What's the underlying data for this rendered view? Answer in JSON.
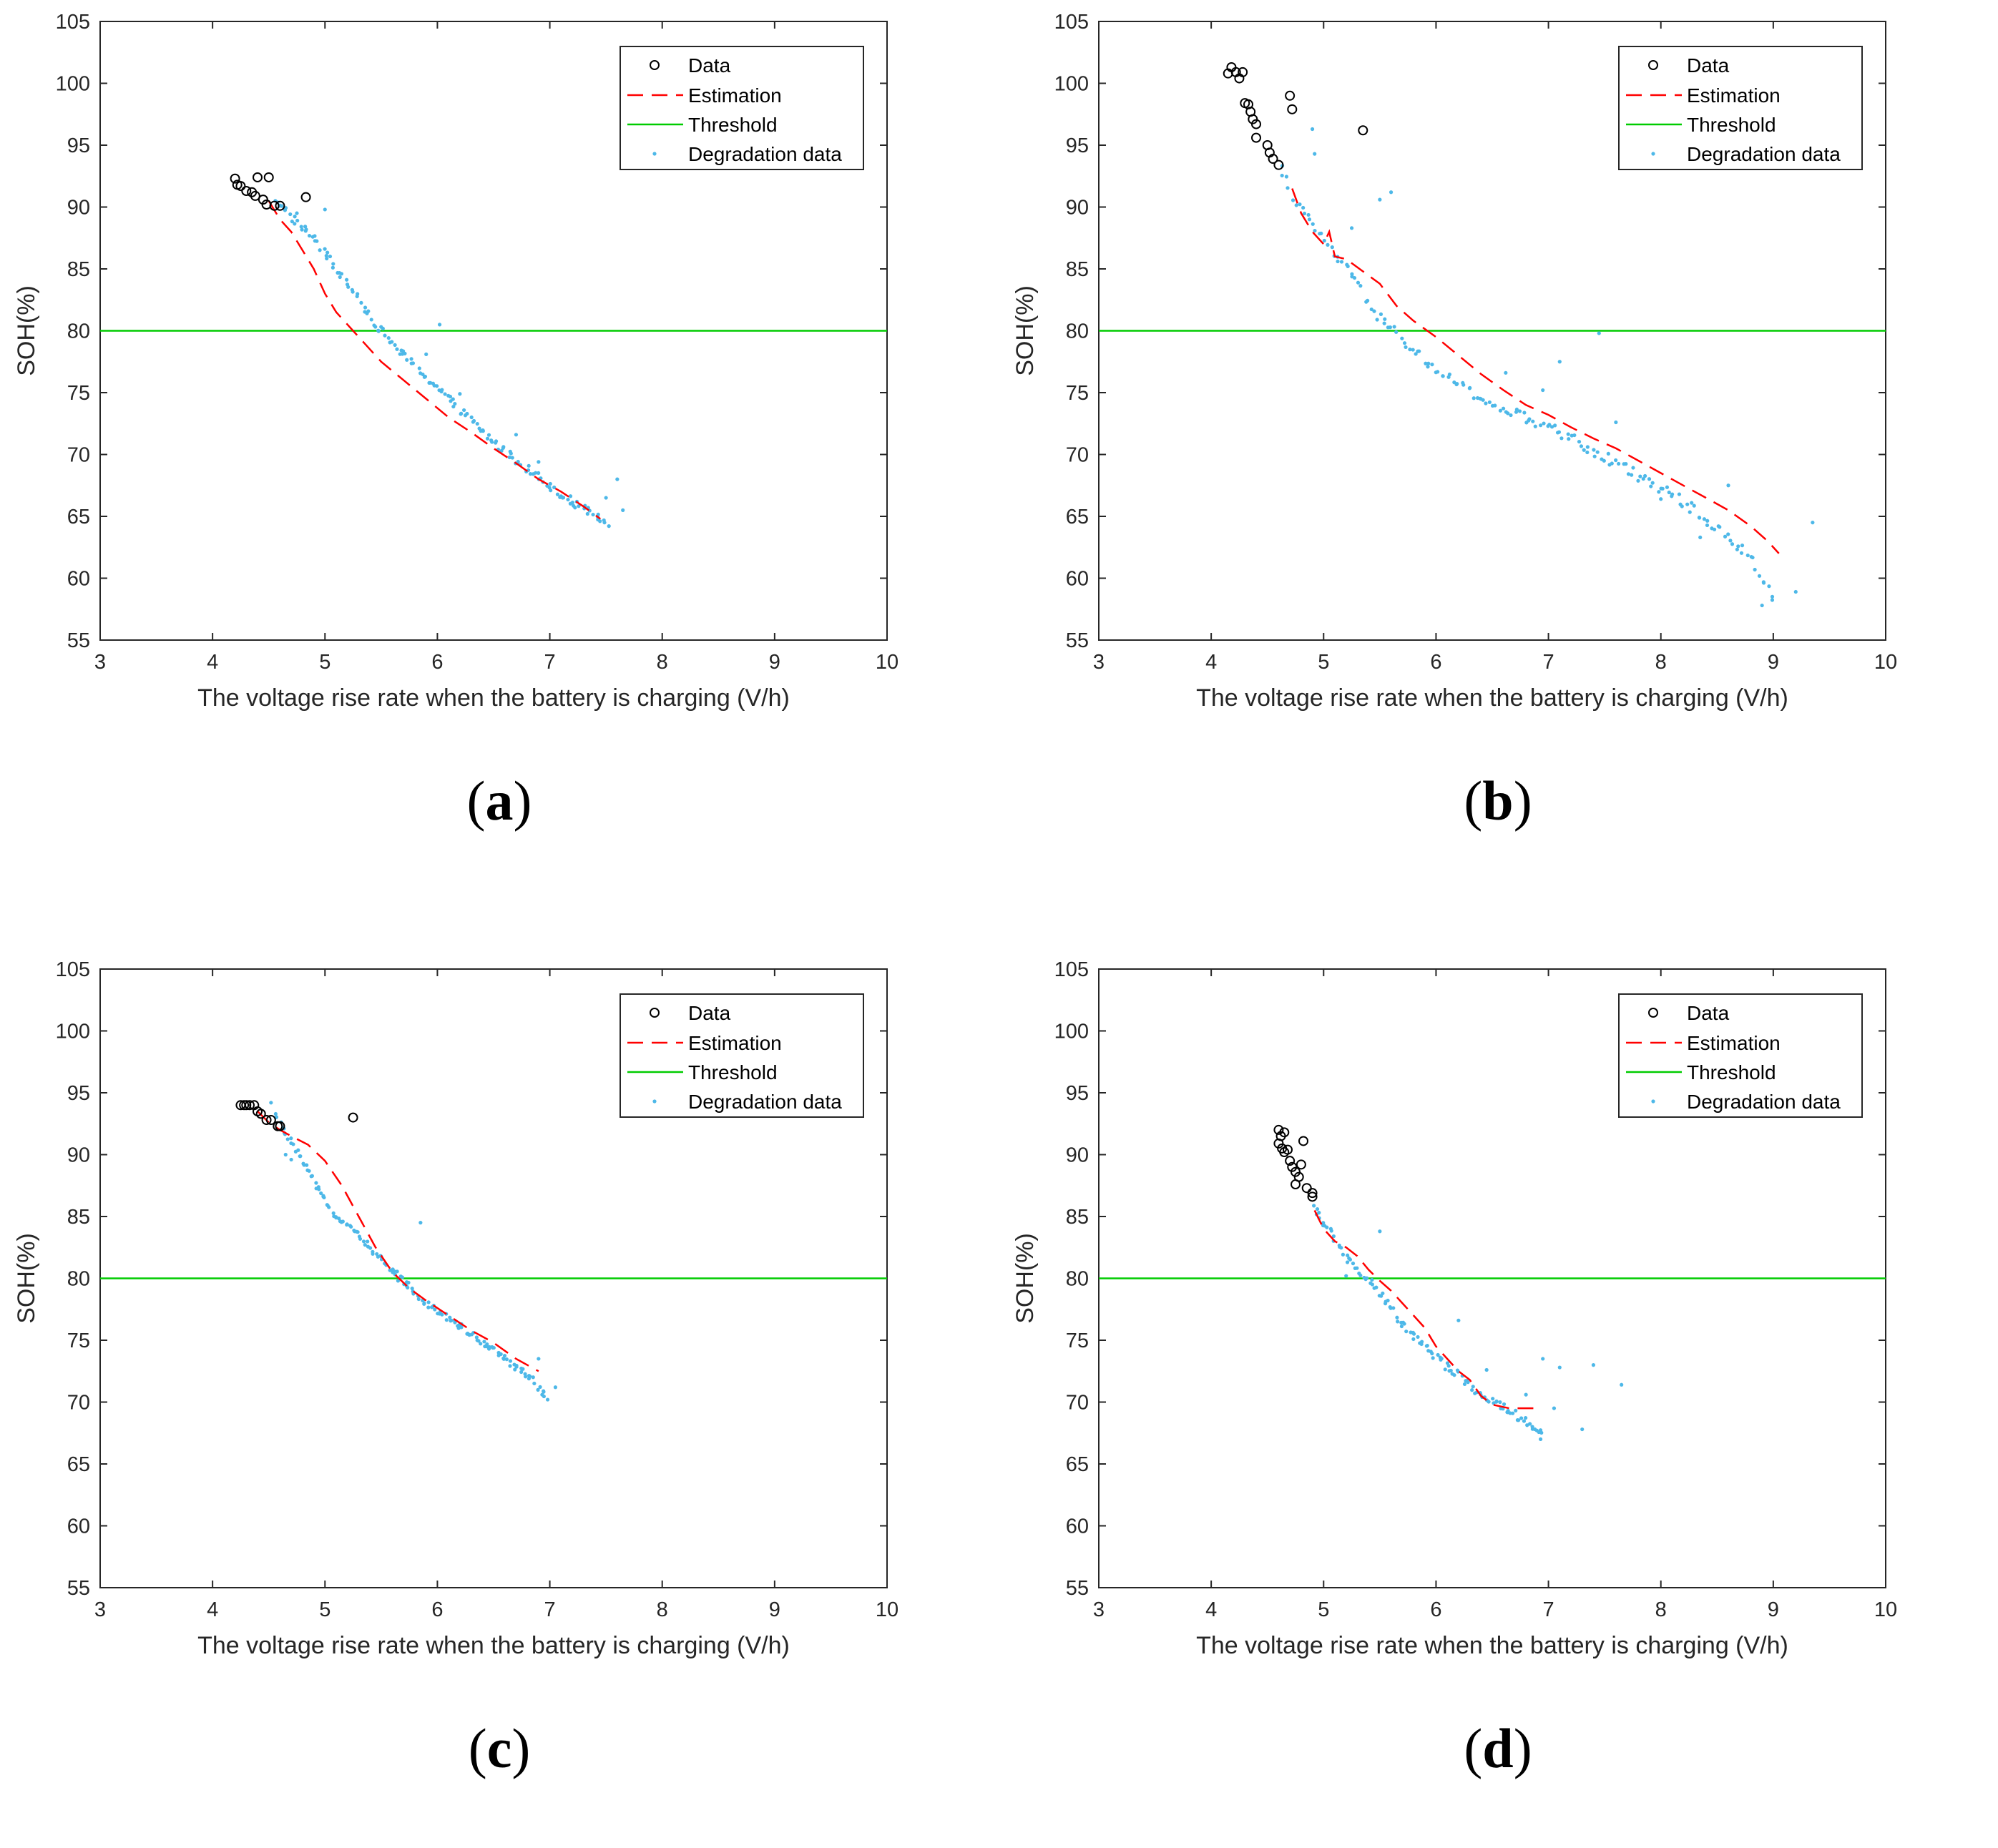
{
  "figure": {
    "panels": [
      {
        "id": "a",
        "caption": "a"
      },
      {
        "id": "b",
        "caption": "b"
      },
      {
        "id": "c",
        "caption": "c"
      },
      {
        "id": "d",
        "caption": "d"
      }
    ],
    "colors": {
      "data": "#000000",
      "estimation": "#ff0000",
      "threshold": "#00cc00",
      "degradation": "#4db8e8",
      "axis": "#262626"
    }
  },
  "chart_data": [
    {
      "panel": "a",
      "type": "scatter",
      "xlabel": "The voltage rise rate when the battery is charging (V/h)",
      "ylabel": "SOH(%)",
      "xlim": [
        3,
        10
      ],
      "ylim": [
        55,
        105
      ],
      "xticks": [
        3,
        4,
        5,
        6,
        7,
        8,
        9,
        10
      ],
      "yticks": [
        55,
        60,
        65,
        70,
        75,
        80,
        85,
        90,
        95,
        100,
        105
      ],
      "legend": [
        "Data",
        "Estimation",
        "Threshold",
        "Degradation data"
      ],
      "legend_location": "top-right",
      "threshold": 80,
      "data": [
        [
          4.2,
          92.3
        ],
        [
          4.22,
          91.8
        ],
        [
          4.25,
          91.7
        ],
        [
          4.3,
          91.3
        ],
        [
          4.35,
          91.2
        ],
        [
          4.4,
          92.4
        ],
        [
          4.38,
          90.9
        ],
        [
          4.45,
          90.6
        ],
        [
          4.48,
          90.2
        ],
        [
          4.5,
          92.4
        ],
        [
          4.55,
          90.1
        ],
        [
          4.6,
          90.1
        ],
        [
          4.83,
          90.8
        ]
      ],
      "estimation": [
        [
          4.5,
          90.5
        ],
        [
          4.6,
          89.0
        ],
        [
          4.7,
          88.0
        ],
        [
          4.8,
          86.5
        ],
        [
          4.9,
          85.0
        ],
        [
          5.0,
          83.0
        ],
        [
          5.1,
          81.5
        ],
        [
          5.2,
          80.5
        ],
        [
          5.35,
          79.0
        ],
        [
          5.5,
          77.5
        ],
        [
          5.7,
          76.0
        ],
        [
          5.9,
          74.5
        ],
        [
          6.1,
          73.0
        ],
        [
          6.3,
          71.8
        ],
        [
          6.5,
          70.5
        ],
        [
          6.7,
          69.3
        ],
        [
          6.9,
          68.0
        ],
        [
          7.1,
          67.0
        ],
        [
          7.3,
          65.8
        ],
        [
          7.45,
          64.8
        ]
      ],
      "degradation": {
        "trend": [
          [
            4.55,
            90.8
          ],
          [
            4.7,
            89.2
          ],
          [
            4.9,
            87.5
          ],
          [
            5.1,
            85.0
          ],
          [
            5.3,
            82.5
          ],
          [
            5.5,
            80.0
          ],
          [
            5.7,
            78.0
          ],
          [
            5.9,
            76.3
          ],
          [
            6.1,
            74.5
          ],
          [
            6.3,
            72.8
          ],
          [
            6.5,
            71.0
          ],
          [
            6.7,
            69.6
          ],
          [
            6.9,
            68.2
          ],
          [
            7.1,
            66.8
          ],
          [
            7.3,
            65.6
          ],
          [
            7.52,
            64.3
          ]
        ],
        "count": 160,
        "spread": 0.7,
        "outliers": [
          [
            4.75,
            89.5
          ],
          [
            5.0,
            89.8
          ],
          [
            6.02,
            80.5
          ],
          [
            6.7,
            71.6
          ],
          [
            6.9,
            69.4
          ],
          [
            7.5,
            66.5
          ],
          [
            7.6,
            68.0
          ],
          [
            7.65,
            65.5
          ],
          [
            5.9,
            78.1
          ],
          [
            6.2,
            74.9
          ]
        ]
      }
    },
    {
      "panel": "b",
      "type": "scatter",
      "xlabel": "The voltage rise rate when the battery is charging (V/h)",
      "ylabel": "SOH(%)",
      "xlim": [
        3,
        10
      ],
      "ylim": [
        55,
        105
      ],
      "xticks": [
        3,
        4,
        5,
        6,
        7,
        8,
        9,
        10
      ],
      "yticks": [
        55,
        60,
        65,
        70,
        75,
        80,
        85,
        90,
        95,
        100,
        105
      ],
      "legend": [
        "Data",
        "Estimation",
        "Threshold",
        "Degradation data"
      ],
      "legend_location": "top-right",
      "threshold": 80,
      "data": [
        [
          4.15,
          100.8
        ],
        [
          4.18,
          101.3
        ],
        [
          4.22,
          100.9
        ],
        [
          4.25,
          100.4
        ],
        [
          4.28,
          100.9
        ],
        [
          4.3,
          98.4
        ],
        [
          4.33,
          98.3
        ],
        [
          4.35,
          97.7
        ],
        [
          4.37,
          97.1
        ],
        [
          4.4,
          96.7
        ],
        [
          4.4,
          95.6
        ],
        [
          4.5,
          95.0
        ],
        [
          4.52,
          94.4
        ],
        [
          4.55,
          93.9
        ],
        [
          4.6,
          93.4
        ],
        [
          4.7,
          99.0
        ],
        [
          4.72,
          97.9
        ],
        [
          5.35,
          96.2
        ]
      ],
      "estimation": [
        [
          4.72,
          91.5
        ],
        [
          4.8,
          89.5
        ],
        [
          4.9,
          88.0
        ],
        [
          5.0,
          87.0
        ],
        [
          5.05,
          88.0
        ],
        [
          5.1,
          86.0
        ],
        [
          5.2,
          85.8
        ],
        [
          5.35,
          84.8
        ],
        [
          5.5,
          83.8
        ],
        [
          5.65,
          82.0
        ],
        [
          5.8,
          80.8
        ],
        [
          6.0,
          79.5
        ],
        [
          6.2,
          78.0
        ],
        [
          6.4,
          76.5
        ],
        [
          6.6,
          75.2
        ],
        [
          6.8,
          74.0
        ],
        [
          7.0,
          73.2
        ],
        [
          7.2,
          72.2
        ],
        [
          7.4,
          71.3
        ],
        [
          7.6,
          70.5
        ],
        [
          7.8,
          69.5
        ],
        [
          8.0,
          68.5
        ],
        [
          8.2,
          67.5
        ],
        [
          8.4,
          66.5
        ],
        [
          8.6,
          65.5
        ],
        [
          8.8,
          64.2
        ],
        [
          8.95,
          63.0
        ],
        [
          9.05,
          62.0
        ]
      ],
      "degradation": {
        "trend": [
          [
            4.62,
            93.2
          ],
          [
            4.75,
            90.5
          ],
          [
            4.9,
            88.5
          ],
          [
            5.05,
            86.8
          ],
          [
            5.2,
            85.0
          ],
          [
            5.35,
            83.0
          ],
          [
            5.5,
            81.0
          ],
          [
            5.7,
            79.3
          ],
          [
            5.9,
            77.5
          ],
          [
            6.1,
            76.3
          ],
          [
            6.3,
            75.0
          ],
          [
            6.5,
            74.0
          ],
          [
            6.7,
            73.3
          ],
          [
            6.9,
            72.5
          ],
          [
            7.1,
            71.8
          ],
          [
            7.3,
            70.8
          ],
          [
            7.5,
            69.8
          ],
          [
            7.7,
            68.8
          ],
          [
            7.9,
            67.8
          ],
          [
            8.1,
            66.8
          ],
          [
            8.3,
            65.5
          ],
          [
            8.5,
            64.0
          ],
          [
            8.7,
            62.5
          ],
          [
            8.85,
            61.0
          ],
          [
            8.95,
            59.5
          ],
          [
            9.0,
            58.2
          ]
        ],
        "count": 170,
        "spread": 0.9,
        "outliers": [
          [
            4.9,
            96.3
          ],
          [
            4.92,
            94.3
          ],
          [
            5.5,
            90.6
          ],
          [
            5.6,
            91.2
          ],
          [
            5.25,
            88.3
          ],
          [
            7.45,
            79.8
          ],
          [
            7.1,
            77.5
          ],
          [
            6.95,
            75.2
          ],
          [
            7.6,
            72.6
          ],
          [
            8.0,
            66.4
          ],
          [
            8.6,
            67.5
          ],
          [
            8.9,
            57.8
          ],
          [
            9.2,
            58.9
          ],
          [
            9.35,
            64.5
          ],
          [
            8.35,
            63.3
          ],
          [
            6.62,
            76.6
          ]
        ]
      }
    },
    {
      "panel": "c",
      "type": "scatter",
      "xlabel": "The voltage rise rate when the battery is charging (V/h)",
      "ylabel": "SOH(%)",
      "xlim": [
        3,
        10
      ],
      "ylim": [
        55,
        105
      ],
      "xticks": [
        3,
        4,
        5,
        6,
        7,
        8,
        9,
        10
      ],
      "yticks": [
        55,
        60,
        65,
        70,
        75,
        80,
        85,
        90,
        95,
        100,
        105
      ],
      "legend": [
        "Data",
        "Estimation",
        "Threshold",
        "Degradation data"
      ],
      "legend_location": "top-right",
      "threshold": 80,
      "data": [
        [
          4.25,
          94.0
        ],
        [
          4.28,
          94.0
        ],
        [
          4.3,
          94.0
        ],
        [
          4.33,
          94.0
        ],
        [
          4.37,
          94.0
        ],
        [
          4.4,
          93.5
        ],
        [
          4.43,
          93.3
        ],
        [
          4.48,
          92.8
        ],
        [
          4.52,
          92.8
        ],
        [
          4.58,
          92.3
        ],
        [
          4.6,
          92.3
        ],
        [
          5.25,
          93.0
        ]
      ],
      "estimation": [
        [
          4.4,
          93.5
        ],
        [
          4.5,
          92.6
        ],
        [
          4.6,
          92.0
        ],
        [
          4.7,
          91.5
        ],
        [
          4.85,
          90.8
        ],
        [
          5.0,
          89.5
        ],
        [
          5.15,
          87.5
        ],
        [
          5.3,
          85.0
        ],
        [
          5.45,
          82.5
        ],
        [
          5.6,
          80.5
        ],
        [
          5.75,
          79.2
        ],
        [
          5.9,
          78.2
        ],
        [
          6.1,
          77.0
        ],
        [
          6.3,
          75.8
        ],
        [
          6.5,
          74.8
        ],
        [
          6.7,
          73.5
        ],
        [
          6.9,
          72.5
        ]
      ],
      "degradation": {
        "trend": [
          [
            4.55,
            93.3
          ],
          [
            4.65,
            91.8
          ],
          [
            4.8,
            89.5
          ],
          [
            4.95,
            87.0
          ],
          [
            5.1,
            85.0
          ],
          [
            5.3,
            83.5
          ],
          [
            5.5,
            81.5
          ],
          [
            5.7,
            79.8
          ],
          [
            5.9,
            78.0
          ],
          [
            6.1,
            76.8
          ],
          [
            6.3,
            75.5
          ],
          [
            6.5,
            74.2
          ],
          [
            6.7,
            72.8
          ],
          [
            6.85,
            71.8
          ],
          [
            6.98,
            70.2
          ]
        ],
        "count": 160,
        "spread": 0.55,
        "outliers": [
          [
            5.85,
            84.5
          ],
          [
            4.52,
            94.2
          ],
          [
            4.65,
            90.0
          ],
          [
            4.7,
            89.6
          ],
          [
            7.05,
            71.2
          ],
          [
            6.9,
            73.5
          ],
          [
            5.65,
            79.8
          ]
        ]
      }
    },
    {
      "panel": "d",
      "type": "scatter",
      "xlabel": "The voltage rise rate when the battery is charging (V/h)",
      "ylabel": "SOH(%)",
      "xlim": [
        3,
        10
      ],
      "ylim": [
        55,
        105
      ],
      "xticks": [
        3,
        4,
        5,
        6,
        7,
        8,
        9,
        10
      ],
      "yticks": [
        55,
        60,
        65,
        70,
        75,
        80,
        85,
        90,
        95,
        100,
        105
      ],
      "legend": [
        "Data",
        "Estimation",
        "Threshold",
        "Degradation data"
      ],
      "legend_location": "top-right",
      "threshold": 80,
      "data": [
        [
          4.6,
          92.0
        ],
        [
          4.62,
          91.5
        ],
        [
          4.65,
          91.8
        ],
        [
          4.6,
          90.9
        ],
        [
          4.63,
          90.5
        ],
        [
          4.65,
          90.2
        ],
        [
          4.68,
          90.4
        ],
        [
          4.7,
          89.5
        ],
        [
          4.72,
          89.0
        ],
        [
          4.75,
          88.6
        ],
        [
          4.78,
          88.2
        ],
        [
          4.8,
          89.2
        ],
        [
          4.82,
          91.1
        ],
        [
          4.75,
          87.6
        ],
        [
          4.85,
          87.3
        ],
        [
          4.9,
          86.9
        ],
        [
          4.9,
          86.6
        ]
      ],
      "estimation": [
        [
          4.92,
          85.5
        ],
        [
          5.0,
          84.0
        ],
        [
          5.1,
          83.0
        ],
        [
          5.2,
          82.5
        ],
        [
          5.3,
          81.8
        ],
        [
          5.4,
          80.7
        ],
        [
          5.5,
          79.8
        ],
        [
          5.6,
          79.0
        ],
        [
          5.7,
          78.0
        ],
        [
          5.8,
          77.0
        ],
        [
          5.9,
          76.0
        ],
        [
          6.0,
          74.5
        ],
        [
          6.1,
          73.5
        ],
        [
          6.2,
          72.5
        ],
        [
          6.3,
          71.8
        ],
        [
          6.4,
          70.5
        ],
        [
          6.5,
          69.8
        ],
        [
          6.65,
          69.5
        ],
        [
          6.9,
          69.5
        ]
      ],
      "degradation": {
        "trend": [
          [
            4.9,
            86.0
          ],
          [
            5.0,
            84.5
          ],
          [
            5.1,
            83.2
          ],
          [
            5.2,
            81.8
          ],
          [
            5.3,
            80.5
          ],
          [
            5.45,
            79.5
          ],
          [
            5.6,
            77.5
          ],
          [
            5.75,
            75.8
          ],
          [
            5.9,
            74.5
          ],
          [
            6.05,
            73.2
          ],
          [
            6.2,
            72.2
          ],
          [
            6.35,
            71.0
          ],
          [
            6.5,
            70.0
          ],
          [
            6.65,
            69.3
          ],
          [
            6.8,
            68.5
          ],
          [
            6.95,
            67.5
          ]
        ],
        "count": 120,
        "spread": 0.7,
        "outliers": [
          [
            5.5,
            83.8
          ],
          [
            6.2,
            76.6
          ],
          [
            6.8,
            70.6
          ],
          [
            6.95,
            73.5
          ],
          [
            7.1,
            72.8
          ],
          [
            7.4,
            73.0
          ],
          [
            7.65,
            71.4
          ],
          [
            7.3,
            67.8
          ],
          [
            7.05,
            69.5
          ],
          [
            6.93,
            67.0
          ],
          [
            5.2,
            80.2
          ],
          [
            6.45,
            72.6
          ]
        ]
      }
    }
  ]
}
